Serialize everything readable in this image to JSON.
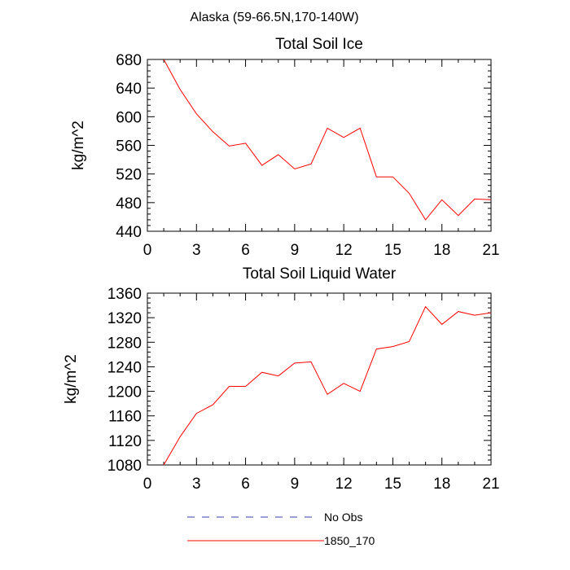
{
  "title": "Alaska (59-66.5N,170-140W)",
  "colors": {
    "series": "#ff0000",
    "no_obs": "#3b3bb0",
    "axis": "#000000"
  },
  "legend": {
    "no_obs": {
      "label": "No Obs",
      "style": "dashed"
    },
    "model": {
      "label": "1850_170",
      "style": "solid"
    }
  },
  "chart_data": [
    {
      "type": "line",
      "title": "Total Soil Ice",
      "xlabel": "",
      "ylabel": "kg/m^2",
      "xlim": [
        0,
        21
      ],
      "ylim": [
        440,
        680
      ],
      "xticks": [
        0,
        3,
        6,
        9,
        12,
        15,
        18,
        21
      ],
      "yticks": [
        440,
        480,
        520,
        560,
        600,
        640,
        680
      ],
      "grid": false,
      "series": [
        {
          "name": "1850_170",
          "x": [
            1,
            2,
            3,
            4,
            5,
            6,
            7,
            8,
            9,
            10,
            11,
            12,
            13,
            14,
            15,
            16,
            17,
            18,
            19,
            20,
            21
          ],
          "values": [
            680,
            638,
            604,
            579,
            559,
            563,
            532,
            547,
            527,
            534,
            584,
            571,
            584,
            516,
            516,
            493,
            456,
            484,
            462,
            485,
            484
          ]
        }
      ]
    },
    {
      "type": "line",
      "title": "Total Soil Liquid Water",
      "xlabel": "",
      "ylabel": "kg/m^2",
      "xlim": [
        0,
        21
      ],
      "ylim": [
        1080,
        1360
      ],
      "xticks": [
        0,
        3,
        6,
        9,
        12,
        15,
        18,
        21
      ],
      "yticks": [
        1080,
        1120,
        1160,
        1200,
        1240,
        1280,
        1320,
        1360
      ],
      "grid": false,
      "series": [
        {
          "name": "1850_170",
          "x": [
            1,
            2,
            3,
            4,
            5,
            6,
            7,
            8,
            9,
            10,
            11,
            12,
            13,
            14,
            15,
            16,
            17,
            18,
            19,
            20,
            21
          ],
          "values": [
            1080,
            1126,
            1164,
            1178,
            1208,
            1208,
            1231,
            1225,
            1246,
            1248,
            1195,
            1213,
            1200,
            1269,
            1273,
            1281,
            1338,
            1309,
            1330,
            1324,
            1328
          ]
        }
      ]
    }
  ]
}
